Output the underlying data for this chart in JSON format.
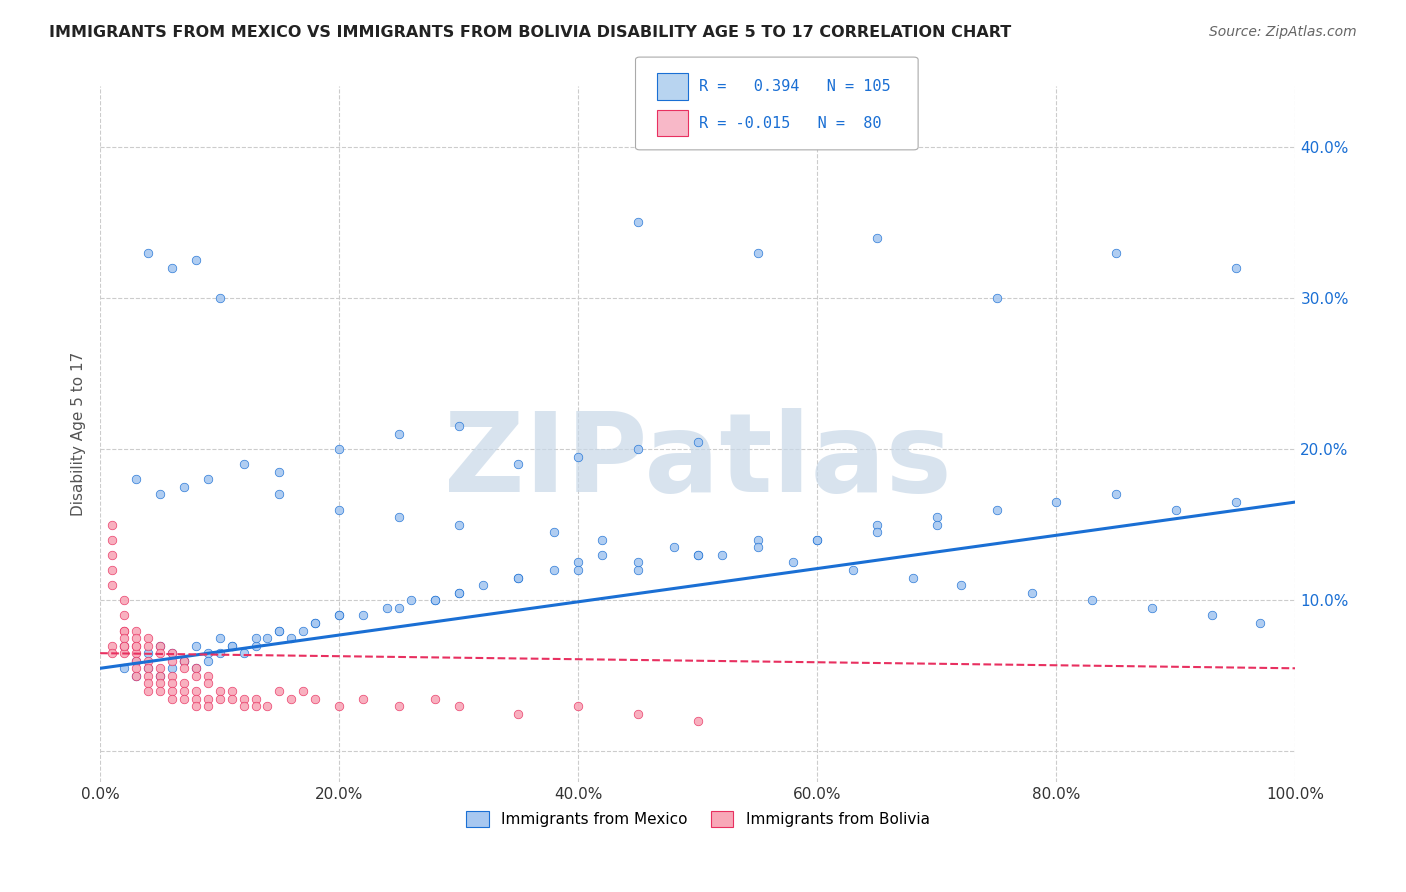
{
  "title": "IMMIGRANTS FROM MEXICO VS IMMIGRANTS FROM BOLIVIA DISABILITY AGE 5 TO 17 CORRELATION CHART",
  "source": "Source: ZipAtlas.com",
  "ylabel": "Disability Age 5 to 17",
  "xlim": [
    0.0,
    1.0
  ],
  "ylim": [
    -0.02,
    0.44
  ],
  "mexico_R": 0.394,
  "mexico_N": 105,
  "bolivia_R": -0.015,
  "bolivia_N": 80,
  "mexico_color": "#a8c8f0",
  "bolivia_color": "#f8a8b8",
  "mexico_line_color": "#1a6fd4",
  "bolivia_line_color": "#e83060",
  "background_color": "#ffffff",
  "grid_color": "#cccccc",
  "watermark_color": "#c8d8e8",
  "legend_box_color_mexico": "#b8d4f0",
  "legend_box_color_bolivia": "#f8b8c8",
  "mexico_scatter_x": [
    0.02,
    0.03,
    0.04,
    0.05,
    0.06,
    0.07,
    0.08,
    0.09,
    0.1,
    0.11,
    0.12,
    0.13,
    0.14,
    0.15,
    0.16,
    0.17,
    0.18,
    0.2,
    0.22,
    0.24,
    0.26,
    0.28,
    0.3,
    0.32,
    0.35,
    0.38,
    0.4,
    0.42,
    0.45,
    0.5,
    0.55,
    0.6,
    0.65,
    0.7,
    0.75,
    0.8,
    0.85,
    0.9,
    0.95,
    0.02,
    0.03,
    0.04,
    0.05,
    0.06,
    0.07,
    0.08,
    0.09,
    0.1,
    0.11,
    0.13,
    0.15,
    0.18,
    0.2,
    0.25,
    0.28,
    0.3,
    0.35,
    0.4,
    0.45,
    0.5,
    0.55,
    0.6,
    0.65,
    0.7,
    0.03,
    0.05,
    0.07,
    0.09,
    0.12,
    0.15,
    0.2,
    0.25,
    0.3,
    0.35,
    0.4,
    0.45,
    0.5,
    0.04,
    0.06,
    0.08,
    0.1,
    0.15,
    0.2,
    0.25,
    0.3,
    0.38,
    0.42,
    0.48,
    0.52,
    0.58,
    0.63,
    0.68,
    0.72,
    0.78,
    0.83,
    0.88,
    0.93,
    0.97,
    0.45,
    0.55,
    0.65,
    0.75,
    0.85,
    0.95
  ],
  "mexico_scatter_y": [
    0.07,
    0.06,
    0.065,
    0.07,
    0.065,
    0.06,
    0.07,
    0.065,
    0.075,
    0.07,
    0.065,
    0.07,
    0.075,
    0.08,
    0.075,
    0.08,
    0.085,
    0.09,
    0.09,
    0.095,
    0.1,
    0.1,
    0.105,
    0.11,
    0.115,
    0.12,
    0.125,
    0.13,
    0.12,
    0.13,
    0.14,
    0.14,
    0.15,
    0.155,
    0.16,
    0.165,
    0.17,
    0.16,
    0.165,
    0.055,
    0.05,
    0.055,
    0.05,
    0.055,
    0.06,
    0.055,
    0.06,
    0.065,
    0.07,
    0.075,
    0.08,
    0.085,
    0.09,
    0.095,
    0.1,
    0.105,
    0.115,
    0.12,
    0.125,
    0.13,
    0.135,
    0.14,
    0.145,
    0.15,
    0.18,
    0.17,
    0.175,
    0.18,
    0.19,
    0.185,
    0.2,
    0.21,
    0.215,
    0.19,
    0.195,
    0.2,
    0.205,
    0.33,
    0.32,
    0.325,
    0.3,
    0.17,
    0.16,
    0.155,
    0.15,
    0.145,
    0.14,
    0.135,
    0.13,
    0.125,
    0.12,
    0.115,
    0.11,
    0.105,
    0.1,
    0.095,
    0.09,
    0.085,
    0.35,
    0.33,
    0.34,
    0.3,
    0.33,
    0.32
  ],
  "bolivia_scatter_x": [
    0.01,
    0.01,
    0.01,
    0.01,
    0.01,
    0.02,
    0.02,
    0.02,
    0.02,
    0.02,
    0.03,
    0.03,
    0.03,
    0.03,
    0.03,
    0.04,
    0.04,
    0.04,
    0.04,
    0.04,
    0.05,
    0.05,
    0.05,
    0.05,
    0.06,
    0.06,
    0.06,
    0.06,
    0.07,
    0.07,
    0.07,
    0.08,
    0.08,
    0.08,
    0.09,
    0.09,
    0.1,
    0.1,
    0.11,
    0.11,
    0.12,
    0.12,
    0.13,
    0.13,
    0.14,
    0.15,
    0.16,
    0.17,
    0.18,
    0.2,
    0.22,
    0.25,
    0.28,
    0.3,
    0.35,
    0.4,
    0.45,
    0.5,
    0.01,
    0.01,
    0.02,
    0.02,
    0.02,
    0.03,
    0.03,
    0.03,
    0.04,
    0.04,
    0.05,
    0.05,
    0.06,
    0.06,
    0.07,
    0.07,
    0.08,
    0.08,
    0.09,
    0.09
  ],
  "bolivia_scatter_y": [
    0.15,
    0.14,
    0.13,
    0.12,
    0.11,
    0.1,
    0.09,
    0.08,
    0.07,
    0.065,
    0.07,
    0.065,
    0.06,
    0.055,
    0.05,
    0.06,
    0.055,
    0.05,
    0.045,
    0.04,
    0.055,
    0.05,
    0.045,
    0.04,
    0.05,
    0.045,
    0.04,
    0.035,
    0.045,
    0.04,
    0.035,
    0.04,
    0.035,
    0.03,
    0.035,
    0.03,
    0.04,
    0.035,
    0.04,
    0.035,
    0.035,
    0.03,
    0.035,
    0.03,
    0.03,
    0.04,
    0.035,
    0.04,
    0.035,
    0.03,
    0.035,
    0.03,
    0.035,
    0.03,
    0.025,
    0.03,
    0.025,
    0.02,
    0.07,
    0.065,
    0.08,
    0.075,
    0.07,
    0.08,
    0.075,
    0.07,
    0.075,
    0.07,
    0.07,
    0.065,
    0.065,
    0.06,
    0.06,
    0.055,
    0.055,
    0.05,
    0.05,
    0.045
  ],
  "mexico_trend_x": [
    0.0,
    1.0
  ],
  "mexico_trend_y": [
    0.055,
    0.165
  ],
  "bolivia_trend_x": [
    0.0,
    1.0
  ],
  "bolivia_trend_y": [
    0.065,
    0.055
  ],
  "bottom_legend": [
    "Immigrants from Mexico",
    "Immigrants from Bolivia"
  ],
  "x_ticks": [
    0.0,
    0.2,
    0.4,
    0.6,
    0.8,
    1.0
  ],
  "x_tick_labels": [
    "0.0%",
    "20.0%",
    "40.0%",
    "60.0%",
    "80.0%",
    "100.0%"
  ],
  "y_ticks": [
    0.0,
    0.1,
    0.2,
    0.3,
    0.4
  ],
  "y_tick_labels": [
    "",
    "10.0%",
    "20.0%",
    "30.0%",
    "40.0%"
  ]
}
